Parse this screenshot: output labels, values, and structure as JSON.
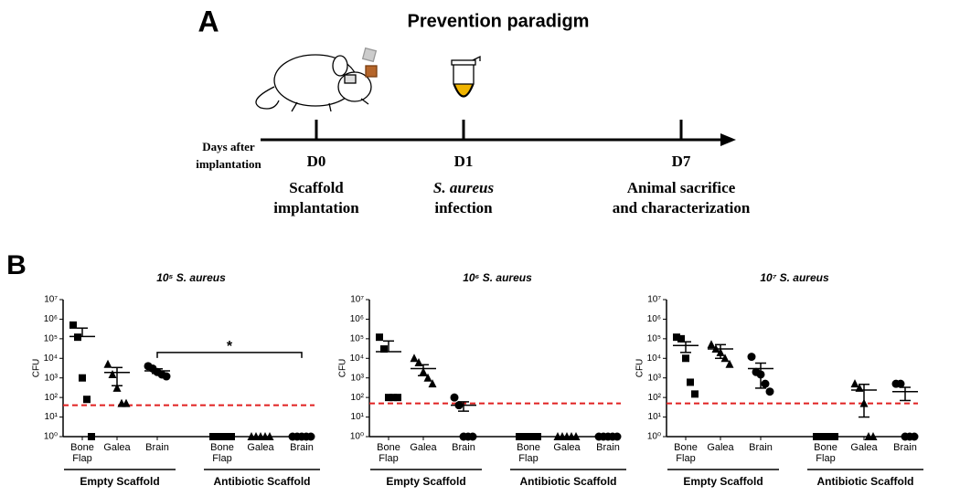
{
  "panel_a": {
    "label": "A",
    "title": "Prevention paradigm",
    "axis_label_lines": [
      "Days after",
      "implantation"
    ],
    "events": [
      {
        "day": "D0",
        "lines": [
          "Scaffold",
          "implantation"
        ]
      },
      {
        "day": "D1",
        "lines": [
          "S. aureus",
          "infection"
        ]
      },
      {
        "day": "D7",
        "lines": [
          "Animal sacrifice",
          "and characterization"
        ]
      }
    ]
  },
  "panel_b_label": "B",
  "chart_data": [
    {
      "type": "scatter",
      "title": "10⁵ S. aureus",
      "ylabel": "CFU",
      "log_scale": true,
      "ylim": [
        1,
        10000000
      ],
      "yticks": [
        {
          "value": 1,
          "label": "10⁰"
        },
        {
          "value": 10,
          "label": "10¹"
        },
        {
          "value": 100,
          "label": "10²"
        },
        {
          "value": 1000,
          "label": "10³"
        },
        {
          "value": 10000,
          "label": "10⁴"
        },
        {
          "value": 100000,
          "label": "10⁵"
        },
        {
          "value": 1000000,
          "label": "10⁶"
        },
        {
          "value": 10000000,
          "label": "10⁷"
        }
      ],
      "categories": [
        "Bone Flap",
        "Galea",
        "Brain",
        "Bone Flap",
        "Galea",
        "Brain"
      ],
      "markers": [
        "square",
        "triangle",
        "circle",
        "square",
        "triangle",
        "circle"
      ],
      "groups": [
        "Empty Scaffold",
        "Antibiotic Scaffold"
      ],
      "points": [
        [
          500000,
          120000,
          1000,
          80,
          1
        ],
        [
          5000,
          1500,
          300,
          50,
          50
        ],
        [
          4000,
          3000,
          2000,
          1500,
          1200
        ],
        [
          1,
          1,
          1,
          1,
          1
        ],
        [
          1,
          1,
          1,
          1,
          1
        ],
        [
          1,
          1,
          1,
          1,
          1
        ]
      ],
      "means": [
        130000,
        1900,
        2300,
        1,
        1,
        1
      ],
      "sems": [
        220000,
        1500,
        600,
        0,
        0,
        0
      ],
      "detection_limit": 40,
      "detection_color": "#e02020",
      "annotations": [
        {
          "text": "*",
          "from": 2,
          "to": 5,
          "y": 20000
        }
      ]
    },
    {
      "type": "scatter",
      "title": "10⁶ S. aureus",
      "ylabel": "CFU",
      "log_scale": true,
      "ylim": [
        1,
        10000000
      ],
      "yticks": [
        {
          "value": 1,
          "label": "10⁰"
        },
        {
          "value": 10,
          "label": "10¹"
        },
        {
          "value": 100,
          "label": "10²"
        },
        {
          "value": 1000,
          "label": "10³"
        },
        {
          "value": 10000,
          "label": "10⁴"
        },
        {
          "value": 100000,
          "label": "10⁵"
        },
        {
          "value": 1000000,
          "label": "10⁶"
        },
        {
          "value": 10000000,
          "label": "10⁷"
        }
      ],
      "categories": [
        "Bone Flap",
        "Galea",
        "Brain",
        "Bone Flap",
        "Galea",
        "Brain"
      ],
      "markers": [
        "square",
        "triangle",
        "circle",
        "square",
        "triangle",
        "circle"
      ],
      "groups": [
        "Empty Scaffold",
        "Antibiotic Scaffold"
      ],
      "points": [
        [
          120000,
          30000,
          100,
          100,
          100
        ],
        [
          10000,
          6000,
          2000,
          1000,
          500
        ],
        [
          100,
          40,
          1,
          1,
          1
        ],
        [
          1,
          1,
          1,
          1,
          1
        ],
        [
          1,
          1,
          1,
          1,
          1
        ],
        [
          1,
          1,
          1,
          1,
          1
        ]
      ],
      "means": [
        22000,
        3000,
        40,
        1,
        1,
        1
      ],
      "sems": [
        55000,
        1700,
        20,
        0,
        0,
        0
      ],
      "detection_limit": 50,
      "detection_color": "#e02020",
      "annotations": []
    },
    {
      "type": "scatter",
      "title": "10⁷ S. aureus",
      "ylabel": "CFU",
      "log_scale": true,
      "ylim": [
        1,
        10000000
      ],
      "yticks": [
        {
          "value": 1,
          "label": "10⁰"
        },
        {
          "value": 10,
          "label": "10¹"
        },
        {
          "value": 100,
          "label": "10²"
        },
        {
          "value": 1000,
          "label": "10³"
        },
        {
          "value": 10000,
          "label": "10⁴"
        },
        {
          "value": 100000,
          "label": "10⁵"
        },
        {
          "value": 1000000,
          "label": "10⁶"
        },
        {
          "value": 10000000,
          "label": "10⁷"
        }
      ],
      "categories": [
        "Bone Flap",
        "Galea",
        "Brain",
        "Bone Flap",
        "Galea",
        "Brain"
      ],
      "markers": [
        "square",
        "triangle",
        "circle",
        "square",
        "triangle",
        "circle"
      ],
      "groups": [
        "Empty Scaffold",
        "Antibiotic Scaffold"
      ],
      "points": [
        [
          120000,
          100000,
          10000,
          600,
          150
        ],
        [
          50000,
          30000,
          20000,
          10000,
          5000
        ],
        [
          12000,
          2000,
          1500,
          500,
          200
        ],
        [
          1,
          1,
          1,
          1,
          1
        ],
        [
          500,
          300,
          50,
          1,
          1
        ],
        [
          500,
          500,
          1,
          1,
          1
        ]
      ],
      "means": [
        45000,
        30000,
        3000,
        1,
        240,
        200
      ],
      "sems": [
        25000,
        20000,
        2700,
        0,
        230,
        130
      ],
      "detection_limit": 50,
      "detection_color": "#e02020",
      "annotations": []
    }
  ]
}
